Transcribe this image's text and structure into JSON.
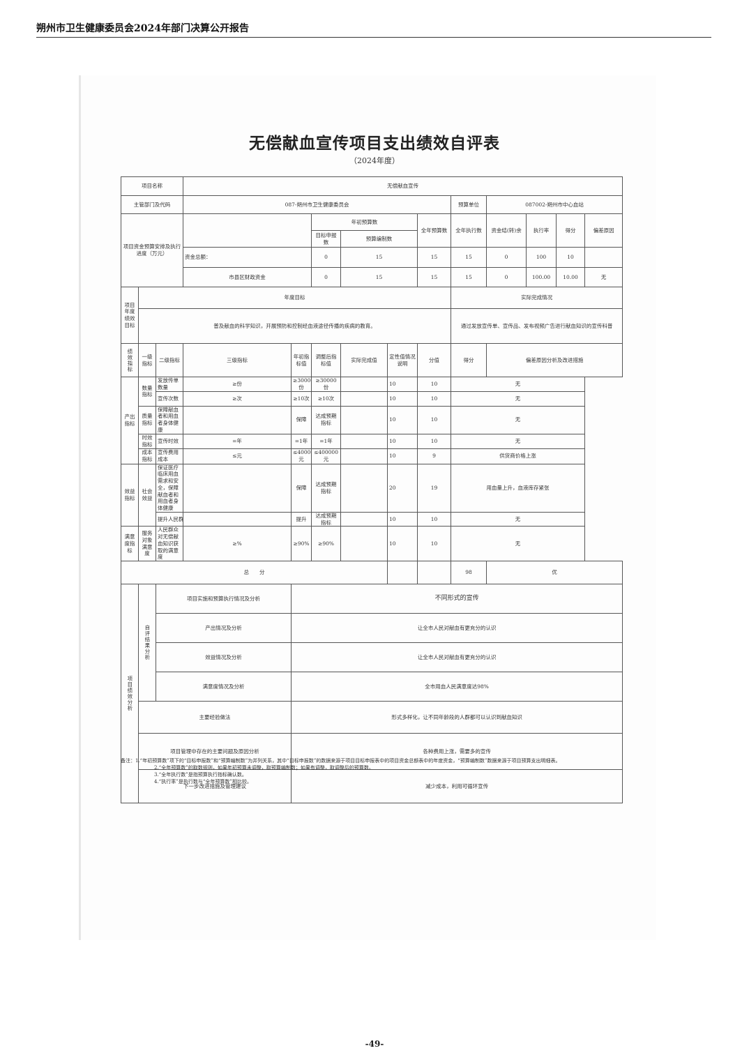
{
  "header": {
    "title": "朔州市卫生健康委员会2024年部门决算公开报告",
    "page_number": "-49-"
  },
  "doc": {
    "title": "无偿献血宣传项目支出绩效自评表",
    "year": "（2024年度）"
  },
  "info": {
    "project_name_label": "项目名称",
    "project_name": "无偿献血宣传",
    "dept_label": "主管部门及代码",
    "dept": "087-朔州市卫生健康委员会",
    "unit_label": "预算单位",
    "unit": "087002-朔州市中心血站"
  },
  "budget": {
    "label": "项目资金预算安排及执行进度（万元）",
    "h_initial": "年初预算数",
    "h_target": "目标申报数",
    "h_compiled": "预算编制数",
    "h_annual": "全年预算数",
    "h_exec": "全年执行数",
    "h_balance": "资金结(转)余",
    "h_rate": "执行率",
    "h_score": "得分",
    "h_reason": "偏差原因",
    "rows": [
      {
        "name": "资金总额：",
        "target": "0",
        "compiled": "15",
        "annual": "15",
        "exec": "15",
        "balance": "0",
        "rate": "100",
        "score": "10",
        "reason": ""
      },
      {
        "name": "市县区财政资金",
        "target": "0",
        "compiled": "15",
        "annual": "15",
        "exec": "15",
        "balance": "0",
        "rate": "100.00",
        "score": "10.00",
        "reason": "无"
      }
    ]
  },
  "goals": {
    "label": "项目年度绩效目标",
    "h_goal": "年度目标",
    "h_actual": "实际完成情况",
    "goal": "普及献血的科学知识，开展预防和控制经血液途径传播的疾病的教育。",
    "actual": "通过发放宣传单、宣传品、发布视频广告进行献血知识的宣传科普"
  },
  "indicators": {
    "label": "绩效指标",
    "headers": [
      "一级指标",
      "二级指标",
      "三级指标",
      "年初指标值",
      "调整后指标值",
      "实际完成值",
      "定性值情况说明",
      "分值",
      "得分",
      "偏差原因分析及改进措施"
    ],
    "l1": [
      "产出指标",
      "效益指标",
      "满意度指标"
    ],
    "l2": [
      "数量指标",
      "质量指标",
      "时效指标",
      "成本指标",
      "社会效益",
      "服务对象满意度"
    ],
    "rows": [
      {
        "name": "发放传单数量",
        "init": "≥份",
        "adj": "≥30000份",
        "actual": "≥30000份",
        "qual": "",
        "weight": "10",
        "score": "10",
        "reason": "无"
      },
      {
        "name": "宣传次数",
        "init": "≥次",
        "adj": "≥10次",
        "actual": "≥10次",
        "qual": "",
        "weight": "10",
        "score": "10",
        "reason": "无"
      },
      {
        "name": "保障献血者和用血者身体健康",
        "init": "",
        "adj": "保障",
        "actual": "达成预期指标",
        "qual": "",
        "weight": "10",
        "score": "10",
        "reason": "无"
      },
      {
        "name": "宣传时效",
        "init": "=年",
        "adj": "=1年",
        "actual": "=1年",
        "qual": "",
        "weight": "10",
        "score": "10",
        "reason": "无"
      },
      {
        "name": "宣传费用成本",
        "init": "≤元",
        "adj": "≤400000元",
        "actual": "≤400000元",
        "qual": "",
        "weight": "10",
        "score": "9",
        "reason": "供货商价格上涨"
      },
      {
        "name": "保证医疗临床用血需求和安全，保障献血者和用血者身体健康",
        "init": "",
        "adj": "保障",
        "actual": "达成预期指标",
        "qual": "",
        "weight": "20",
        "score": "19",
        "reason": "用血量上升，血液库存紧张"
      },
      {
        "name": "提升人民群众全面了解无偿献血知识普及率",
        "init": "",
        "adj": "提升",
        "actual": "达成预期指标",
        "qual": "",
        "weight": "10",
        "score": "10",
        "reason": "无"
      },
      {
        "name": "人民群众对无偿献血知识获取的满意度",
        "init": "≥%",
        "adj": "≥90%",
        "actual": "≥90%",
        "qual": "",
        "weight": "10",
        "score": "10",
        "reason": "无"
      }
    ],
    "total_label": "总　　分",
    "total_score": "98",
    "total_grade": "优"
  },
  "analysis": {
    "label": "项目绩效分析",
    "sub_label": "自评结果分析",
    "rows": [
      {
        "label": "项目实施和预算执行情况及分析",
        "value": "不同形式的宣传"
      },
      {
        "label": "产出情况及分析",
        "value": "让全市人民对献血有更充分的认识"
      },
      {
        "label": "效益情况及分析",
        "value": "让全市人民对献血有更充分的认识"
      },
      {
        "label": "满意度情况及分析",
        "value": "全市用血人民满意度达98%"
      },
      {
        "label": "主要经验做法",
        "value": "形式多样化，让不同年龄段的人群都可以认识到献血知识"
      },
      {
        "label": "项目管理中存在的主要问题及原因分析",
        "value": "各种费用上涨，需要多的宣传"
      },
      {
        "label": "下一步改进措施及管理建议",
        "value": "减少成本，利用可循环宣传"
      }
    ]
  },
  "notes": [
    "备注：1.“年初预算数”项下的“目标申报数”和“预算编制数”为并列关系，其中“目标申报数”的数据来源于项目目标申报表中的项目资金总额表中的年度资金，“预算编制数”数据来源于项目预算支出明细表。",
    "2.“全年预算数”的取数规则，如果年初预算未调整，取预算编制数；如果有调整，取调整后的预算数。",
    "3.“全年执行数”是指预算执行指标确认数。",
    "4.“执行率”是执行数与“全年预算数”相比较。"
  ]
}
